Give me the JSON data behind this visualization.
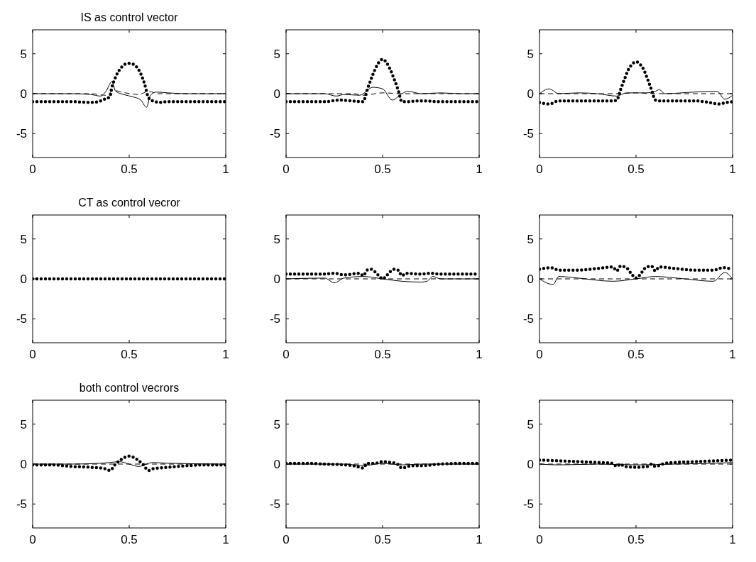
{
  "chart_data": [
    {
      "type": "line",
      "title": "IS as control vector",
      "xlim": [
        0,
        1
      ],
      "ylim": [
        -8,
        8
      ],
      "xticks": [
        0,
        0.5,
        1
      ],
      "yticks": [
        -5,
        0,
        5
      ],
      "series": [
        {
          "color": "#000000",
          "line_style": "dotted",
          "x": [
            0,
            0.1,
            0.2,
            0.3,
            0.34,
            0.37,
            0.4,
            0.41,
            0.42,
            0.44,
            0.46,
            0.48,
            0.5,
            0.52,
            0.54,
            0.56,
            0.58,
            0.6,
            0.62,
            0.66,
            0.7,
            0.8,
            0.9,
            1
          ],
          "values": [
            -1,
            -1,
            -1,
            -1.1,
            -1,
            -0.7,
            -0.4,
            0.8,
            1.5,
            2.6,
            3.3,
            3.7,
            3.8,
            3.7,
            3.3,
            2.5,
            1.2,
            -0.5,
            -0.9,
            -1.1,
            -1,
            -1,
            -1,
            -1
          ]
        },
        {
          "color": "#000000",
          "line_style": "solid",
          "x": [
            0,
            0.1,
            0.2,
            0.3,
            0.35,
            0.38,
            0.41,
            0.43,
            0.47,
            0.52,
            0.56,
            0.59,
            0.61,
            0.64,
            0.7,
            0.8,
            0.9,
            1
          ],
          "values": [
            0,
            0,
            0,
            -0.1,
            -0.3,
            0.3,
            1.5,
            0.3,
            -0.1,
            -0.4,
            -0.8,
            -1.7,
            -0.2,
            0.2,
            0.1,
            0,
            0,
            0
          ]
        },
        {
          "color": "#000000",
          "line_style": "dashed",
          "x": [
            0,
            0.3,
            0.38,
            0.42,
            0.48,
            0.55,
            0.6,
            0.65,
            1
          ],
          "values": [
            0,
            0,
            -0.2,
            0.4,
            0.1,
            -0.1,
            0.3,
            0,
            0
          ]
        }
      ]
    },
    {
      "type": "line",
      "xlim": [
        0,
        1
      ],
      "ylim": [
        -8,
        8
      ],
      "xticks": [
        0,
        0.5,
        1
      ],
      "yticks": [
        -5,
        0,
        5
      ],
      "series": [
        {
          "color": "#000000",
          "line_style": "dotted",
          "x": [
            0,
            0.1,
            0.2,
            0.28,
            0.34,
            0.4,
            0.42,
            0.44,
            0.46,
            0.48,
            0.5,
            0.52,
            0.54,
            0.56,
            0.58,
            0.6,
            0.62,
            0.7,
            0.8,
            0.9,
            1
          ],
          "values": [
            -1,
            -1,
            -1,
            -0.8,
            -0.9,
            -1,
            0.5,
            1.8,
            3,
            3.9,
            4.3,
            3.9,
            3,
            1.8,
            0.5,
            -1,
            -1,
            -0.9,
            -1,
            -1,
            -1
          ]
        },
        {
          "color": "#000000",
          "line_style": "solid",
          "x": [
            0,
            0.2,
            0.26,
            0.3,
            0.38,
            0.45,
            0.5,
            0.55,
            0.6,
            0.63,
            0.7,
            0.8,
            0.9,
            1
          ],
          "values": [
            0,
            0,
            -0.3,
            -0.1,
            -0.2,
            0.8,
            0.6,
            -0.8,
            0,
            0.3,
            0,
            0.1,
            0,
            0
          ]
        },
        {
          "color": "#000000",
          "line_style": "dashed",
          "x": [
            0,
            0.35,
            0.4,
            0.5,
            0.6,
            1
          ],
          "values": [
            0,
            0,
            -0.2,
            0.1,
            0,
            0
          ]
        }
      ]
    },
    {
      "type": "line",
      "xlim": [
        0,
        1
      ],
      "ylim": [
        -8,
        8
      ],
      "xticks": [
        0,
        0.5,
        1
      ],
      "yticks": [
        -5,
        0,
        5
      ],
      "series": [
        {
          "color": "#000000",
          "line_style": "dotted",
          "x": [
            0,
            0.05,
            0.1,
            0.2,
            0.3,
            0.38,
            0.4,
            0.42,
            0.44,
            0.46,
            0.48,
            0.5,
            0.52,
            0.54,
            0.56,
            0.58,
            0.6,
            0.62,
            0.7,
            0.8,
            0.88,
            0.93,
            0.97,
            1
          ],
          "values": [
            -1.1,
            -1.3,
            -0.9,
            -0.9,
            -0.9,
            -0.9,
            -0.8,
            0.5,
            1.8,
            3,
            3.7,
            4,
            3.7,
            3,
            1.8,
            0.5,
            -0.8,
            -0.9,
            -0.9,
            -0.9,
            -1.1,
            -1.3,
            -1.1,
            -1
          ]
        },
        {
          "color": "#000000",
          "line_style": "solid",
          "x": [
            0,
            0.05,
            0.1,
            0.2,
            0.3,
            0.4,
            0.45,
            0.55,
            0.6,
            0.62,
            0.65,
            0.8,
            0.92,
            0.96,
            1
          ],
          "values": [
            0,
            0.6,
            0,
            0.1,
            0,
            -0.3,
            0.1,
            0.1,
            0.3,
            0.5,
            0,
            0.2,
            0.3,
            -0.7,
            -0.2
          ]
        },
        {
          "color": "#000000",
          "line_style": "dashed",
          "x": [
            0,
            0.4,
            0.5,
            0.6,
            1
          ],
          "values": [
            0,
            0,
            0.1,
            0,
            0
          ]
        }
      ]
    },
    {
      "type": "line",
      "title": "CT as control vecror",
      "xlim": [
        0,
        1
      ],
      "ylim": [
        -8,
        8
      ],
      "xticks": [
        0,
        0.5,
        1
      ],
      "yticks": [
        -5,
        0,
        5
      ],
      "series": [
        {
          "color": "#000000",
          "line_style": "dotted",
          "x": [
            0,
            0.5,
            1
          ],
          "values": [
            0,
            0,
            0
          ]
        }
      ]
    },
    {
      "type": "line",
      "xlim": [
        0,
        1
      ],
      "ylim": [
        -8,
        8
      ],
      "xticks": [
        0,
        0.5,
        1
      ],
      "yticks": [
        -5,
        0,
        5
      ],
      "series": [
        {
          "color": "#000000",
          "line_style": "dotted",
          "x": [
            0,
            0.1,
            0.2,
            0.25,
            0.3,
            0.38,
            0.4,
            0.42,
            0.44,
            0.46,
            0.48,
            0.5,
            0.52,
            0.54,
            0.56,
            0.58,
            0.6,
            0.62,
            0.7,
            0.75,
            0.8,
            0.9,
            1
          ],
          "values": [
            0.6,
            0.6,
            0.6,
            0.7,
            0.5,
            0.7,
            0.4,
            1.1,
            1.2,
            0.9,
            0.4,
            0,
            0.4,
            0.9,
            1.2,
            1.1,
            0.4,
            0.7,
            0.6,
            0.7,
            0.6,
            0.6,
            0.6
          ]
        },
        {
          "color": "#000000",
          "line_style": "solid",
          "x": [
            0,
            0.2,
            0.25,
            0.3,
            0.4,
            0.5,
            0.6,
            0.7,
            0.73,
            0.76,
            0.8,
            1
          ],
          "values": [
            0,
            0.1,
            -0.5,
            0.1,
            0.3,
            0,
            -0.3,
            -0.4,
            -0.3,
            0.3,
            0,
            0
          ]
        },
        {
          "color": "#000000",
          "line_style": "dashed",
          "x": [
            0,
            1
          ],
          "values": [
            0,
            0
          ]
        }
      ]
    },
    {
      "type": "line",
      "xlim": [
        0,
        1
      ],
      "ylim": [
        -8,
        8
      ],
      "xticks": [
        0,
        0.5,
        1
      ],
      "yticks": [
        -5,
        0,
        5
      ],
      "series": [
        {
          "color": "#000000",
          "line_style": "dotted",
          "x": [
            0,
            0.06,
            0.1,
            0.2,
            0.3,
            0.38,
            0.4,
            0.42,
            0.45,
            0.48,
            0.5,
            0.52,
            0.55,
            0.58,
            0.6,
            0.62,
            0.7,
            0.8,
            0.9,
            0.95,
            1
          ],
          "values": [
            1.2,
            1.4,
            1.1,
            1.1,
            1.3,
            1.5,
            1.0,
            1.6,
            1.4,
            0.5,
            0.1,
            0.5,
            1.4,
            1.6,
            1.0,
            1.5,
            1.3,
            1.1,
            1.1,
            1.4,
            1.2
          ]
        },
        {
          "color": "#000000",
          "line_style": "solid",
          "x": [
            0,
            0.07,
            0.1,
            0.2,
            0.38,
            0.5,
            0.6,
            0.75,
            0.9,
            0.96,
            1
          ],
          "values": [
            0,
            -0.7,
            0.3,
            0.1,
            -0.3,
            0,
            0.3,
            0,
            -0.3,
            0.8,
            0
          ]
        },
        {
          "color": "#000000",
          "line_style": "dashed",
          "x": [
            0,
            1
          ],
          "values": [
            0,
            0
          ]
        }
      ]
    },
    {
      "type": "line",
      "title": "both control vecrors",
      "xlim": [
        0,
        1
      ],
      "ylim": [
        -8,
        8
      ],
      "xticks": [
        0,
        0.5,
        1
      ],
      "yticks": [
        -5,
        0,
        5
      ],
      "series": [
        {
          "color": "#000000",
          "line_style": "dotted",
          "x": [
            0,
            0.1,
            0.2,
            0.3,
            0.38,
            0.4,
            0.43,
            0.46,
            0.5,
            0.54,
            0.57,
            0.6,
            0.62,
            0.7,
            0.8,
            0.9,
            1
          ],
          "values": [
            -0.1,
            -0.1,
            -0.3,
            -0.4,
            -0.6,
            -0.8,
            0,
            0.6,
            1,
            0.6,
            0,
            -0.8,
            -0.6,
            -0.4,
            -0.2,
            -0.1,
            -0.1
          ]
        },
        {
          "color": "#000000",
          "line_style": "solid",
          "x": [
            0,
            0.2,
            0.35,
            0.4,
            0.45,
            0.5,
            0.55,
            0.62,
            0.7,
            1
          ],
          "values": [
            0,
            0,
            0.1,
            0.2,
            0.3,
            0,
            -0.3,
            0.2,
            0.1,
            0
          ]
        },
        {
          "color": "#000000",
          "line_style": "dashed",
          "x": [
            0,
            1
          ],
          "values": [
            0,
            0
          ]
        }
      ]
    },
    {
      "type": "line",
      "xlim": [
        0,
        1
      ],
      "ylim": [
        -8,
        8
      ],
      "xticks": [
        0,
        0.5,
        1
      ],
      "yticks": [
        -5,
        0,
        5
      ],
      "series": [
        {
          "color": "#000000",
          "line_style": "dotted",
          "x": [
            0,
            0.1,
            0.2,
            0.3,
            0.35,
            0.4,
            0.42,
            0.46,
            0.5,
            0.54,
            0.57,
            0.6,
            0.65,
            0.7,
            0.8,
            0.9,
            1
          ],
          "values": [
            0.1,
            0.1,
            0,
            -0.1,
            -0.2,
            -0.5,
            0.1,
            0.1,
            0.3,
            0.2,
            0.1,
            -0.5,
            -0.2,
            -0.2,
            0,
            0.1,
            0.1
          ]
        },
        {
          "color": "#000000",
          "line_style": "solid",
          "x": [
            0,
            0.3,
            0.4,
            0.5,
            0.6,
            0.7,
            1
          ],
          "values": [
            0,
            0,
            -0.2,
            0.1,
            -0.1,
            0,
            0
          ]
        },
        {
          "color": "#000000",
          "line_style": "dashed",
          "x": [
            0,
            1
          ],
          "values": [
            0,
            0
          ]
        }
      ]
    },
    {
      "type": "line",
      "xlim": [
        0,
        1
      ],
      "ylim": [
        -8,
        8
      ],
      "xticks": [
        0,
        0.5,
        1
      ],
      "yticks": [
        -5,
        0,
        5
      ],
      "series": [
        {
          "color": "#000000",
          "line_style": "dotted",
          "x": [
            0,
            0.1,
            0.2,
            0.3,
            0.38,
            0.4,
            0.42,
            0.44,
            0.5,
            0.56,
            0.58,
            0.6,
            0.65,
            0.7,
            0.8,
            0.9,
            1
          ],
          "values": [
            0.5,
            0.4,
            0.3,
            0.2,
            0.1,
            -0.3,
            0,
            -0.3,
            -0.4,
            -0.3,
            0,
            -0.3,
            0.1,
            0.2,
            0.3,
            0.4,
            0.5
          ]
        },
        {
          "color": "#000000",
          "line_style": "solid",
          "x": [
            0,
            0.1,
            0.3,
            0.5,
            0.7,
            0.9,
            1
          ],
          "values": [
            0,
            -0.1,
            0,
            -0.1,
            0,
            0.1,
            0.2
          ]
        },
        {
          "color": "#000000",
          "line_style": "dashed",
          "x": [
            0,
            1
          ],
          "values": [
            0,
            0
          ]
        }
      ]
    }
  ]
}
